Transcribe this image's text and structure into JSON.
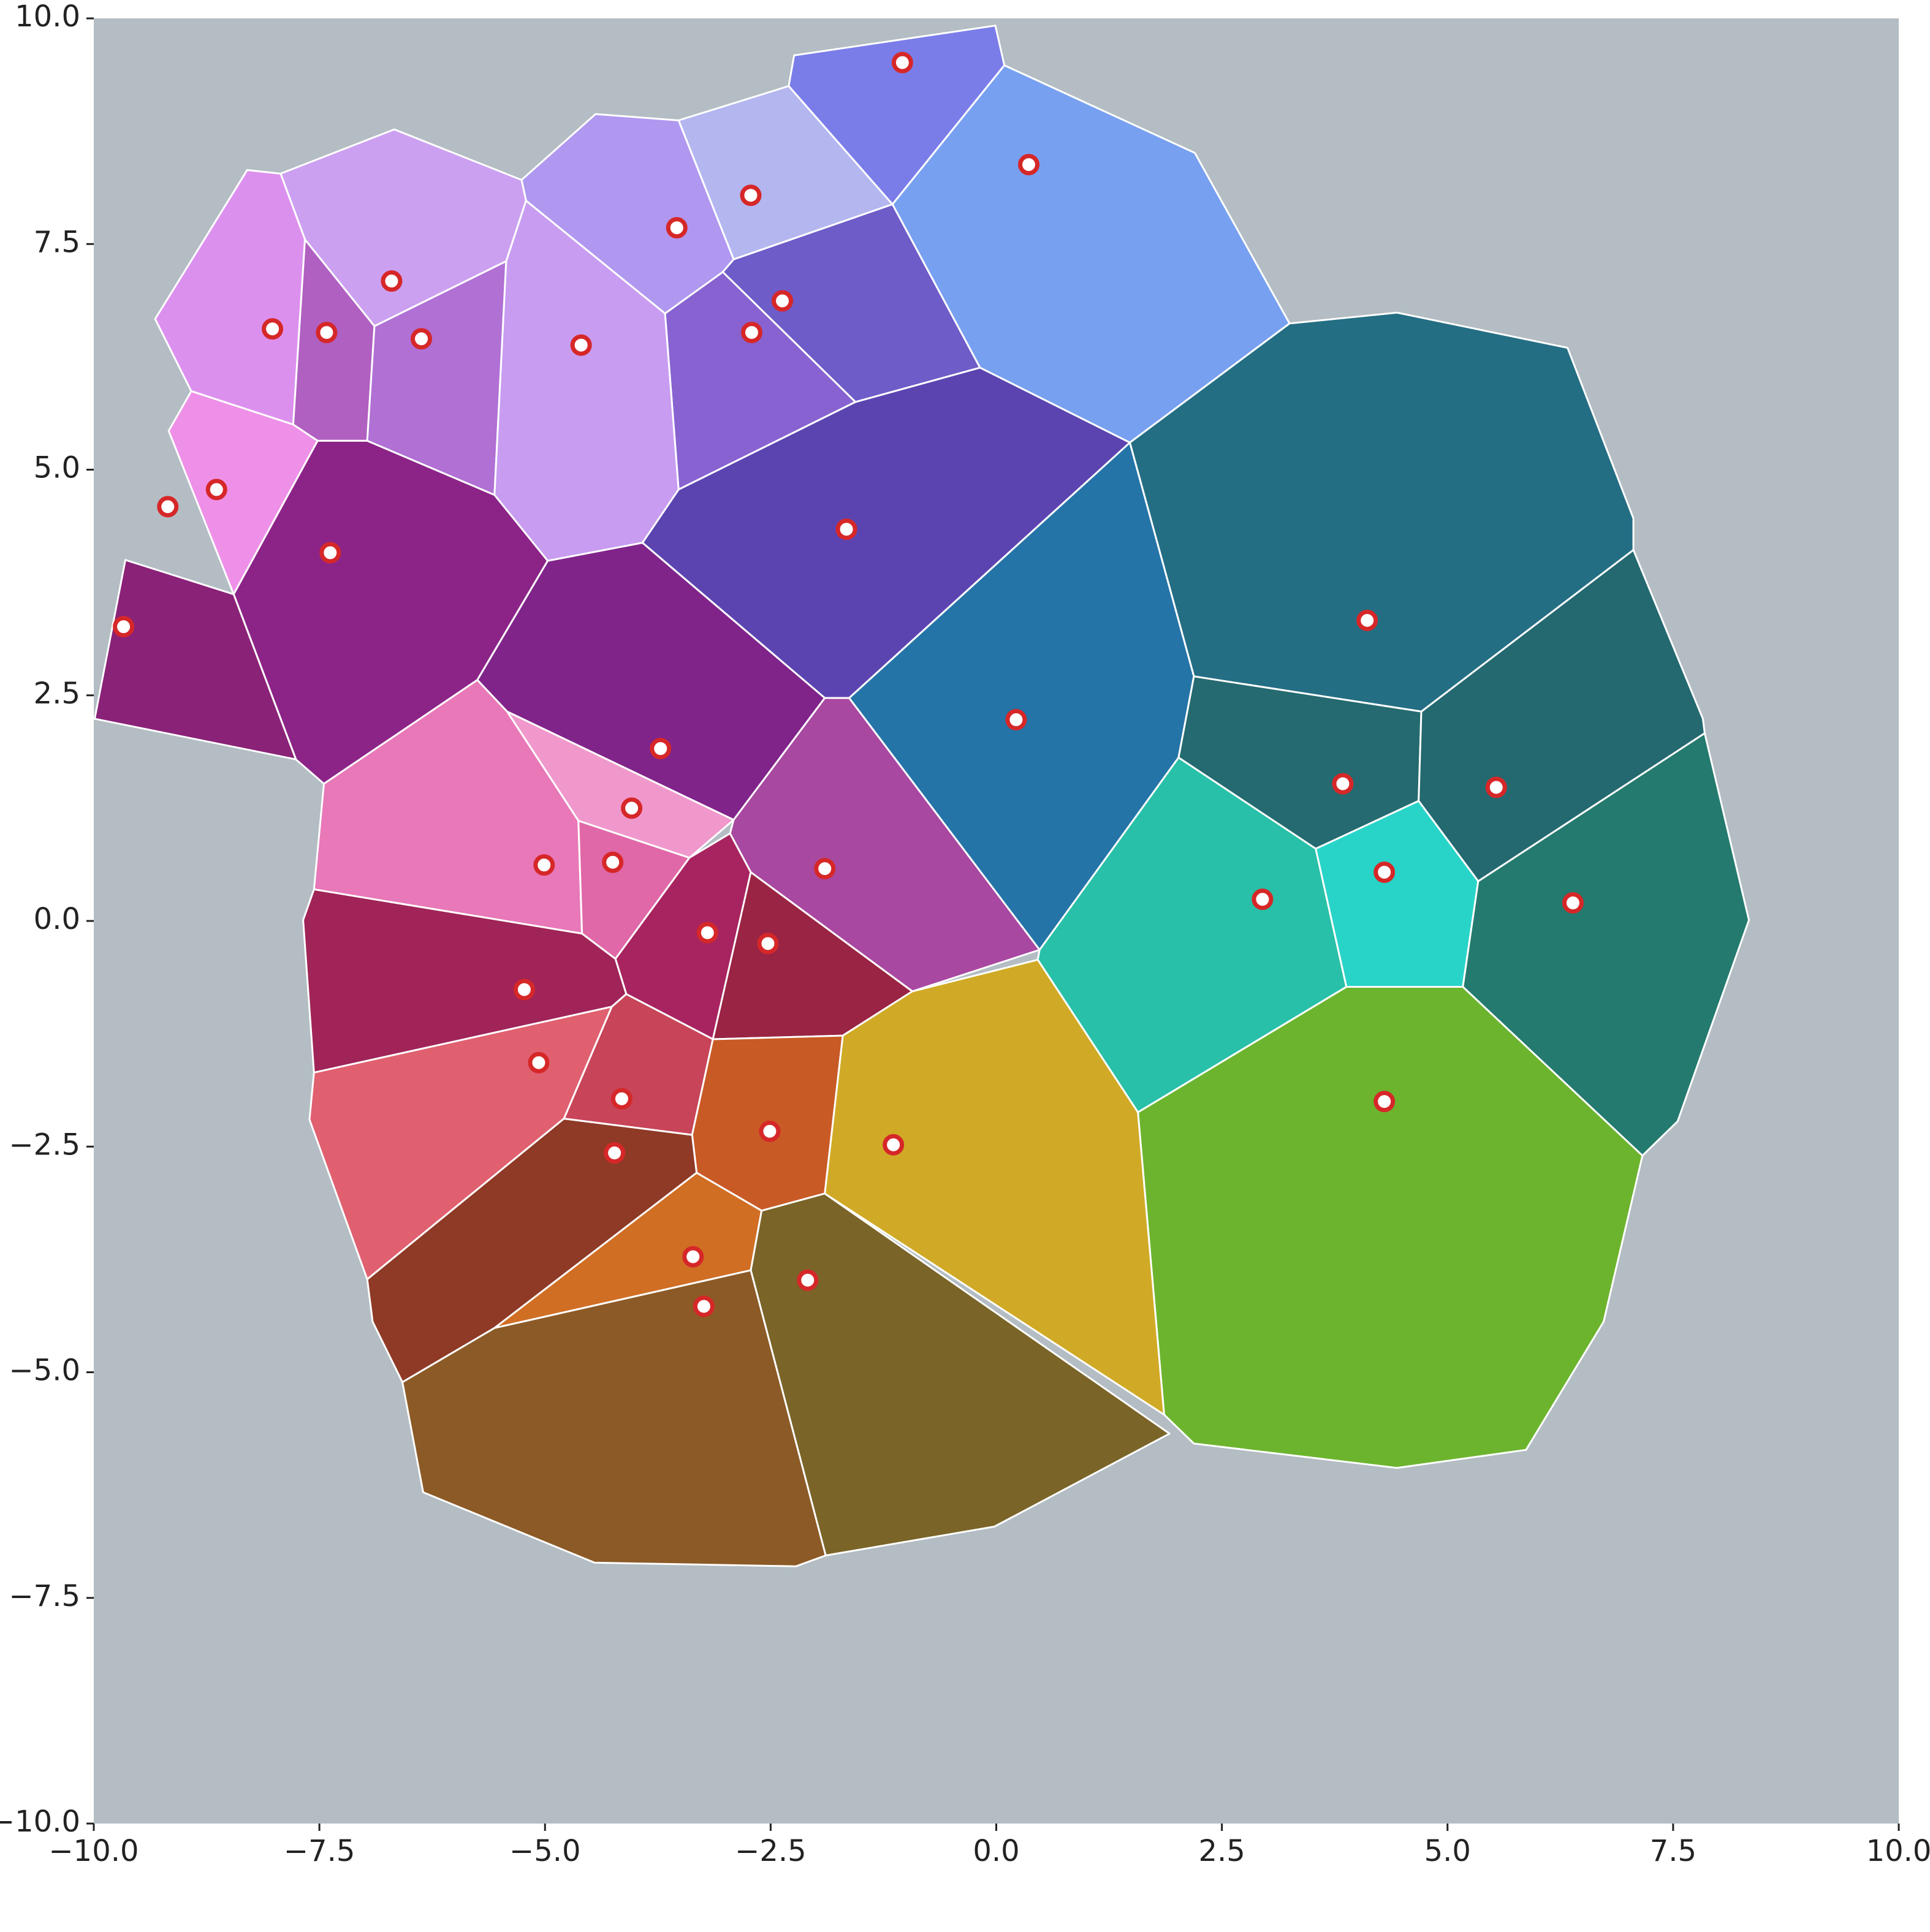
{
  "chart_data": {
    "type": "voronoi",
    "xlim": [
      -10,
      10
    ],
    "ylim": [
      -10,
      10
    ],
    "xticks": [
      {
        "value": -10,
        "label": "−10.0"
      },
      {
        "value": -7.5,
        "label": "−7.5"
      },
      {
        "value": -5,
        "label": "−5.0"
      },
      {
        "value": -2.5,
        "label": "−2.5"
      },
      {
        "value": 0,
        "label": "0.0"
      },
      2.5,
      {
        "value": 5,
        "label": "5.0"
      },
      7.5,
      {
        "value": 10,
        "label": "10.0"
      }
    ],
    "yticks": [
      {
        "value": -10,
        "label": "−10.0"
      },
      {
        "value": -7.5,
        "label": "−7.5"
      },
      {
        "value": -5,
        "label": "−5.0"
      },
      {
        "value": -2.5,
        "label": "−2.5"
      },
      {
        "value": 0,
        "label": "0.0"
      },
      2.5,
      {
        "value": 5,
        "label": "5.0"
      },
      7.5,
      {
        "value": 10,
        "label": "10.0"
      }
    ],
    "background": "#b3bdc3",
    "edge_color": "#ffffff",
    "points": {
      "color": "#d62728",
      "fill": "#ffffff",
      "x": [
        -1.04,
        0.36,
        -2.72,
        -3.54,
        -2.37,
        -2.71,
        -6.7,
        -8.02,
        -7.42,
        -6.37,
        -4.6,
        -8.64,
        -9.18,
        -7.38,
        -1.66,
        -9.67,
        4.11,
        0.22,
        -3.72,
        -4.04,
        3.84,
        5.54,
        -5.01,
        -4.25,
        -1.9,
        2.95,
        4.3,
        6.39,
        -3.2,
        -2.53,
        -5.23,
        -5.07,
        -4.15,
        4.3,
        -2.51,
        -1.14,
        -4.23,
        -3.36,
        -2.09,
        -3.24
      ],
      "y": [
        9.51,
        8.38,
        8.04,
        7.68,
        6.87,
        6.52,
        7.09,
        6.56,
        6.52,
        6.45,
        6.38,
        4.78,
        4.59,
        4.08,
        4.34,
        3.26,
        3.33,
        2.23,
        1.91,
        1.25,
        1.52,
        1.48,
        0.62,
        0.65,
        0.58,
        0.24,
        0.54,
        0.2,
        -0.13,
        -0.25,
        -0.76,
        -1.57,
        -1.97,
        -2.0,
        -2.33,
        -2.48,
        -2.57,
        -3.72,
        -3.98,
        -4.27
      ]
    },
    "cells": [
      {
        "color": "#7a7de8",
        "x": [
          -2.24,
          -0.01,
          0.09,
          -1.15,
          -2.3
        ],
        "y": [
          9.59,
          9.92,
          9.48,
          7.94,
          9.25
        ]
      },
      {
        "color": "#78a0f0",
        "x": [
          0.09,
          2.2,
          3.25,
          1.48,
          -0.18,
          -1.15
        ],
        "y": [
          9.48,
          8.51,
          6.62,
          5.3,
          6.13,
          7.94
        ]
      },
      {
        "color": "#b4b6f0",
        "x": [
          -3.52,
          -2.3,
          -1.15,
          -2.91
        ],
        "y": [
          8.87,
          9.25,
          7.94,
          7.33
        ]
      },
      {
        "color": "#b098f0",
        "x": [
          -5.26,
          -4.44,
          -3.52,
          -2.91,
          -3.03,
          -3.67,
          -5.21
        ],
        "y": [
          8.21,
          8.94,
          8.87,
          7.33,
          7.19,
          6.73,
          7.98
        ]
      },
      {
        "color": "#6e5cc8",
        "x": [
          -2.91,
          -1.15,
          -0.18,
          -1.56,
          -3.03
        ],
        "y": [
          7.33,
          7.94,
          6.13,
          5.75,
          7.19
        ]
      },
      {
        "color": "#8862d0",
        "x": [
          -3.03,
          -1.56,
          -3.52,
          -3.67
        ],
        "y": [
          7.19,
          5.75,
          4.78,
          6.73
        ]
      },
      {
        "color": "#cca0f0",
        "x": [
          -7.93,
          -6.67,
          -5.26,
          -5.21,
          -5.43,
          -6.89,
          -7.66
        ],
        "y": [
          8.28,
          8.77,
          8.21,
          7.98,
          7.31,
          6.59,
          7.55
        ]
      },
      {
        "color": "#dc90ee",
        "x": [
          -8.3,
          -7.93,
          -7.66,
          -7.79,
          -8.92,
          -9.32
        ],
        "y": [
          8.32,
          8.28,
          7.55,
          5.5,
          5.87,
          6.67
        ]
      },
      {
        "color": "#b060c0",
        "x": [
          -7.66,
          -6.89,
          -6.97,
          -7.52,
          -7.79
        ],
        "y": [
          7.55,
          6.59,
          5.32,
          5.32,
          5.5
        ]
      },
      {
        "color": "#b070d4",
        "x": [
          -6.89,
          -5.43,
          -5.56,
          -6.97
        ],
        "y": [
          6.59,
          7.31,
          4.72,
          5.32
        ]
      },
      {
        "color": "#c89cf0",
        "x": [
          -5.21,
          -3.67,
          -3.52,
          -3.92,
          -4.97,
          -5.56,
          -5.43
        ],
        "y": [
          7.98,
          6.73,
          4.78,
          4.19,
          3.99,
          4.72,
          7.31
        ]
      },
      {
        "color": "#ee90e8",
        "x": [
          -8.92,
          -7.79,
          -7.52,
          -8.45,
          -9.17
        ],
        "y": [
          5.87,
          5.5,
          5.32,
          3.62,
          5.43
        ]
      },
      {
        "color": "#8c2488",
        "x": [
          -7.52,
          -6.97,
          -5.56,
          -4.97,
          -5.75,
          -7.45,
          -7.76,
          -8.45
        ],
        "y": [
          5.32,
          5.32,
          4.72,
          3.99,
          2.67,
          1.52,
          1.79,
          3.62
        ]
      },
      {
        "color": "#5c44b0",
        "x": [
          -3.52,
          -1.56,
          -0.18,
          1.48,
          -1.63,
          -1.9,
          -3.92
        ],
        "y": [
          4.78,
          5.75,
          6.13,
          5.3,
          2.47,
          2.47,
          4.19
        ]
      },
      {
        "color": "#8a2278",
        "x": [
          -9.65,
          -8.45,
          -7.76,
          -9.99
        ],
        "y": [
          4.0,
          3.62,
          1.79,
          2.24
        ]
      },
      {
        "color": "#246e84",
        "x": [
          1.48,
          3.25,
          4.44,
          6.33,
          7.06,
          7.06,
          4.71,
          2.19
        ],
        "y": [
          5.3,
          6.62,
          6.74,
          6.35,
          4.46,
          4.11,
          2.32,
          2.71
        ]
      },
      {
        "color": "#2474a8",
        "x": [
          1.48,
          2.19,
          2.02,
          0.48,
          -1.63
        ],
        "y": [
          5.3,
          2.71,
          1.81,
          -0.32,
          2.47
        ]
      },
      {
        "color": "#80248a",
        "x": [
          -5.75,
          -4.97,
          -3.92,
          -1.9,
          -2.91,
          -5.42
        ],
        "y": [
          2.67,
          3.99,
          4.19,
          2.47,
          1.12,
          2.32
        ]
      },
      {
        "color": "#f098cc",
        "x": [
          -5.42,
          -2.91,
          -3.4,
          -4.63
        ],
        "y": [
          2.32,
          1.12,
          0.7,
          1.11
        ]
      },
      {
        "color": "#246a70",
        "x": [
          2.19,
          4.71,
          4.68,
          3.54,
          2.02
        ],
        "y": [
          2.71,
          2.32,
          1.33,
          0.8,
          1.81
        ]
      },
      {
        "color": "#246870",
        "x": [
          4.71,
          7.06,
          7.83,
          7.85,
          5.34,
          4.68
        ],
        "y": [
          2.32,
          4.11,
          2.24,
          2.08,
          0.44,
          1.33
        ]
      },
      {
        "color": "#e878b8",
        "x": [
          -7.45,
          -5.75,
          -5.42,
          -4.63,
          -4.59,
          -7.56
        ],
        "y": [
          1.52,
          2.67,
          2.32,
          1.11,
          -0.14,
          0.35
        ]
      },
      {
        "color": "#e068a8",
        "x": [
          -4.63,
          -3.4,
          -4.22,
          -4.59
        ],
        "y": [
          1.11,
          0.7,
          -0.42,
          -0.14
        ]
      },
      {
        "color": "#a848a0",
        "x": [
          -2.91,
          -1.9,
          -1.63,
          0.48,
          -0.93,
          -2.72,
          -2.95
        ],
        "y": [
          1.12,
          2.47,
          2.47,
          -0.32,
          -0.78,
          0.54,
          0.97
        ]
      },
      {
        "color": "#28c0a8",
        "x": [
          2.02,
          3.54,
          3.88,
          1.57,
          0.46,
          0.48
        ],
        "y": [
          1.81,
          0.8,
          -0.73,
          -2.12,
          -0.43,
          -0.32
        ]
      },
      {
        "color": "#28d4c8",
        "x": [
          3.54,
          4.68,
          5.34,
          5.17,
          3.88
        ],
        "y": [
          0.8,
          1.33,
          0.44,
          -0.73,
          -0.73
        ]
      },
      {
        "color": "#247a6e",
        "x": [
          5.34,
          7.85,
          8.34,
          7.55,
          7.16,
          5.17
        ],
        "y": [
          0.44,
          2.08,
          0.01,
          -2.22,
          -2.6,
          -0.73
        ]
      },
      {
        "color": "#a82460",
        "x": [
          -3.4,
          -2.95,
          -2.72,
          -3.07,
          -3.14,
          -4.1,
          -4.22
        ],
        "y": [
          0.7,
          0.97,
          0.54,
          -1.3,
          -1.31,
          -0.81,
          -0.42
        ]
      },
      {
        "color": "#9a2444",
        "x": [
          -2.72,
          -0.93,
          -1.7,
          -3.14
        ],
        "y": [
          0.54,
          -0.78,
          -1.27,
          -1.31
        ]
      },
      {
        "color": "#a02458",
        "x": [
          -7.56,
          -4.59,
          -4.22,
          -4.1,
          -4.26,
          -7.56,
          -7.68
        ],
        "y": [
          0.35,
          -0.14,
          -0.42,
          -0.81,
          -0.95,
          -1.68,
          0.01
        ]
      },
      {
        "color": "#e06070",
        "x": [
          -7.56,
          -4.26,
          -4.79,
          -6.97,
          -7.61
        ],
        "y": [
          -1.68,
          -0.95,
          -2.19,
          -3.97,
          -2.2
        ]
      },
      {
        "color": "#c84458",
        "x": [
          -4.1,
          -3.14,
          -3.37,
          -4.79,
          -4.26
        ],
        "y": [
          -0.81,
          -1.31,
          -2.37,
          -2.19,
          -0.95
        ]
      },
      {
        "color": "#6cb42e",
        "x": [
          1.57,
          3.88,
          5.17,
          7.16,
          6.73,
          5.87,
          4.44,
          2.19,
          1.86
        ],
        "y": [
          -2.12,
          -0.73,
          -0.73,
          -2.6,
          -4.44,
          -5.86,
          -6.06,
          -5.79,
          -5.47
        ]
      },
      {
        "color": "#c85a26",
        "x": [
          -3.14,
          -1.7,
          -1.9,
          -2.6,
          -3.32,
          -3.37
        ],
        "y": [
          -1.31,
          -1.27,
          -3.02,
          -3.21,
          -2.79,
          -2.37
        ]
      },
      {
        "color": "#d0aa26",
        "x": [
          -1.7,
          -0.93,
          0.46,
          1.57,
          1.86,
          -1.9
        ],
        "y": [
          -1.27,
          -0.78,
          -0.43,
          -2.12,
          -5.47,
          -3.02
        ]
      },
      {
        "color": "#8e3a26",
        "x": [
          -4.79,
          -3.37,
          -3.32,
          -5.56,
          -6.58,
          -6.91,
          -6.97
        ],
        "y": [
          -2.19,
          -2.37,
          -2.79,
          -4.51,
          -5.11,
          -4.44,
          -3.97
        ]
      },
      {
        "color": "#d06e24",
        "x": [
          -3.32,
          -2.6,
          -2.72,
          -5.56
        ],
        "y": [
          -2.79,
          -3.21,
          -3.87,
          -4.51
        ]
      },
      {
        "color": "#7a6428",
        "x": [
          -2.6,
          -1.9,
          1.92,
          -0.02,
          -1.89,
          -2.72
        ],
        "y": [
          -3.21,
          -3.02,
          -5.68,
          -6.71,
          -7.03,
          -3.87
        ]
      },
      {
        "color": "#8c5a26",
        "x": [
          -5.56,
          -2.72,
          -1.89,
          -2.22,
          -4.45,
          -6.35,
          -6.58
        ],
        "y": [
          -4.51,
          -3.87,
          -7.03,
          -7.15,
          -7.11,
          -6.33,
          -5.11
        ]
      }
    ]
  }
}
